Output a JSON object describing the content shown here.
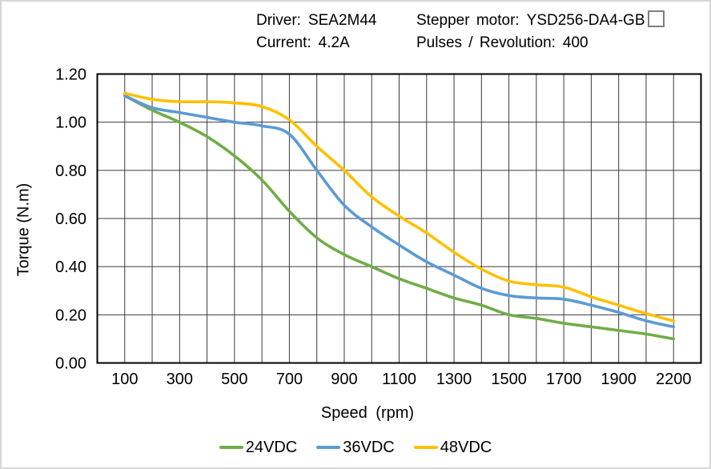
{
  "header": {
    "driver_label": "Driver:",
    "driver_value": "SEA2M44",
    "motor_label": "Stepper motor:",
    "motor_value": "YSD256-DA4-GB",
    "motor_value_suffix_box": "□",
    "current_label": "Current:",
    "current_value": "4.2A",
    "pulses_label": "Pulses / Revolution:",
    "pulses_value": "400"
  },
  "chart_data": {
    "type": "line",
    "title": "",
    "xlabel": "Speed (rpm)",
    "ylabel": "Torque (N.m)",
    "ylim": [
      0,
      1.2
    ],
    "y_ticks": [
      0,
      0.2,
      0.4,
      0.6,
      0.8,
      1.0,
      1.2
    ],
    "y_tick_labels": [
      "0.00",
      "0.20",
      "0.40",
      "0.60",
      "0.80",
      "1.00",
      "1.20"
    ],
    "grid": true,
    "grid_color": "#3b3b3b",
    "axis_color": "#000000",
    "categories": [
      100,
      200,
      300,
      400,
      500,
      600,
      700,
      800,
      900,
      1000,
      1100,
      1200,
      1300,
      1400,
      1500,
      1600,
      1700,
      1800,
      1900,
      2000,
      2200
    ],
    "x_tick_indices": [
      0,
      2,
      4,
      6,
      8,
      10,
      12,
      14,
      16,
      18,
      20
    ],
    "x_tick_labels": [
      "100",
      "300",
      "500",
      "700",
      "900",
      "1100",
      "1300",
      "1500",
      "1700",
      "1900",
      "2200"
    ],
    "legend_position": "bottom",
    "series": [
      {
        "name": "24VDC",
        "color": "#70AD47",
        "values": [
          1.11,
          1.05,
          1.0,
          0.94,
          0.86,
          0.76,
          0.63,
          0.52,
          0.45,
          0.4,
          0.35,
          0.31,
          0.27,
          0.24,
          0.2,
          0.185,
          0.165,
          0.15,
          0.135,
          0.12,
          0.1
        ]
      },
      {
        "name": "36VDC",
        "color": "#5B9BD5",
        "values": [
          1.11,
          1.06,
          1.04,
          1.02,
          1.0,
          0.985,
          0.95,
          0.8,
          0.655,
          0.565,
          0.49,
          0.42,
          0.365,
          0.31,
          0.28,
          0.27,
          0.265,
          0.24,
          0.21,
          0.175,
          0.15
        ]
      },
      {
        "name": "48VDC",
        "color": "#FFC000",
        "values": [
          1.12,
          1.095,
          1.085,
          1.085,
          1.08,
          1.065,
          1.01,
          0.9,
          0.8,
          0.69,
          0.61,
          0.54,
          0.46,
          0.39,
          0.34,
          0.325,
          0.315,
          0.275,
          0.24,
          0.205,
          0.175
        ]
      }
    ]
  }
}
